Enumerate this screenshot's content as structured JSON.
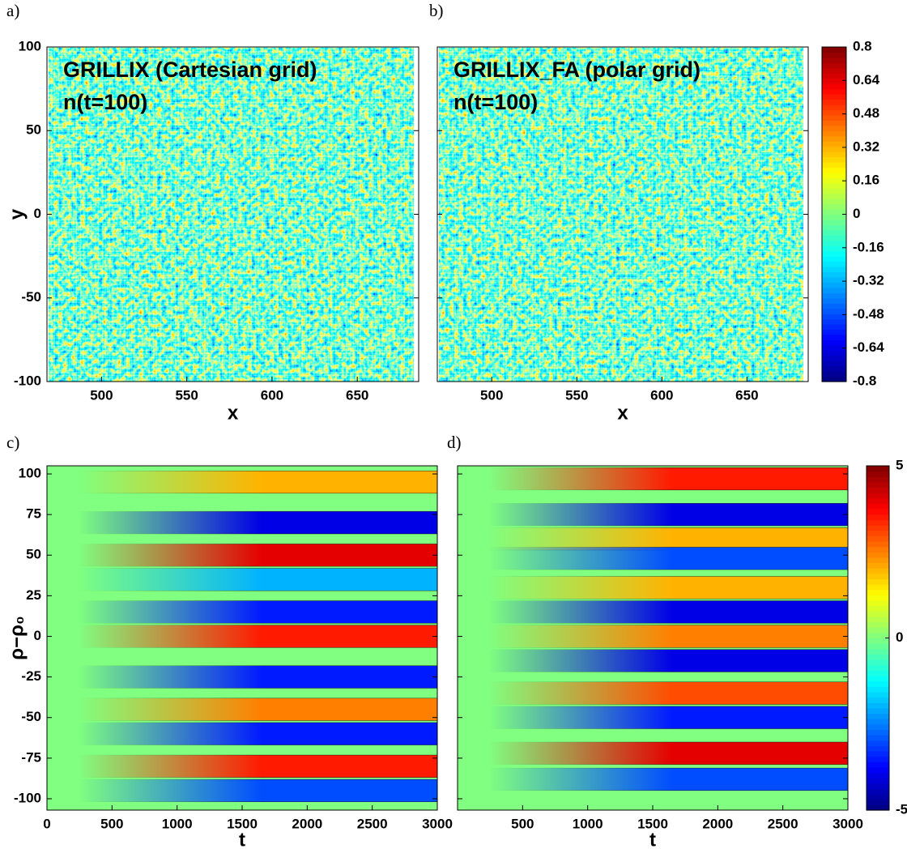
{
  "chart_data": [
    {
      "type": "heatmap",
      "panel": "a)",
      "title": "GRILLIX (Cartesian grid)",
      "subtitle": "n(t=100)",
      "x_label": "x",
      "y_label": "y",
      "xlim": [
        468,
        686
      ],
      "ylim": [
        -100,
        100
      ],
      "xticks": [
        500,
        550,
        600,
        650
      ],
      "yticks": [
        -100,
        -50,
        0,
        50,
        100
      ]
    },
    {
      "type": "heatmap",
      "panel": "b)",
      "title": "GRILLIX_FA (polar grid)",
      "subtitle": "n(t=100)",
      "x_label": "x",
      "xlim": [
        468,
        686
      ],
      "ylim": [
        -100,
        100
      ],
      "xticks": [
        500,
        550,
        600,
        650
      ],
      "yticks": [
        -100,
        -50,
        0,
        50,
        100
      ],
      "colorbar": {
        "clim": [
          -0.8,
          0.8
        ],
        "ticks": [
          0.8,
          0.64,
          0.48,
          0.32,
          0.16,
          0,
          -0.16,
          -0.32,
          -0.48,
          -0.64,
          -0.8
        ]
      }
    },
    {
      "type": "contour",
      "panel": "c)",
      "x_label": "t",
      "y_label": "ρ−ρ₀",
      "xlim": [
        0,
        3000
      ],
      "ylim": [
        -107,
        105
      ],
      "xticks": [
        0,
        500,
        1000,
        1500,
        2000,
        2500,
        3000
      ],
      "yticks": [
        -100,
        -75,
        -50,
        -25,
        0,
        25,
        50,
        75,
        100
      ],
      "y": [
        95,
        70,
        50,
        35,
        15,
        0,
        -25,
        -45,
        -60,
        -80,
        -95
      ],
      "values": [
        2,
        -4,
        4,
        -2,
        -3.5,
        3.5,
        -3.5,
        2.5,
        -3.5,
        3.5,
        -3
      ]
    },
    {
      "type": "contour",
      "panel": "d)",
      "x_label": "t",
      "xlim": [
        0,
        3000
      ],
      "ylim": [
        -107,
        105
      ],
      "xticks": [
        500,
        1000,
        1500,
        2000,
        2500,
        3000
      ],
      "yticks": [
        -100,
        -75,
        -50,
        -25,
        0,
        25,
        50,
        75,
        100
      ],
      "y": [
        97,
        75,
        60,
        48,
        30,
        15,
        0,
        -15,
        -35,
        -50,
        -72,
        -88
      ],
      "values": [
        3.5,
        -4,
        2,
        -3,
        2,
        -4,
        2.5,
        -4,
        3,
        -3.5,
        4,
        -3
      ],
      "colorbar": {
        "clim": [
          -5,
          5
        ],
        "ticks": [
          5,
          0,
          -5
        ]
      }
    }
  ]
}
